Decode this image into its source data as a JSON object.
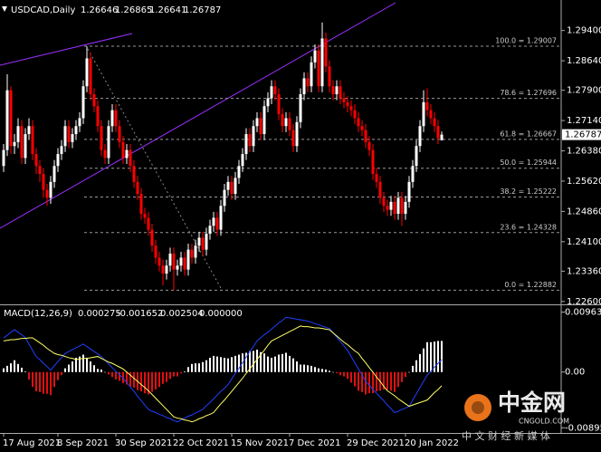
{
  "chart_data": [
    {
      "type": "candlestick",
      "title": "USDCAD,Daily",
      "header_values": [
        1.26646,
        1.26865,
        1.26641,
        1.26787
      ],
      "categories": [
        "17 Aug 2021",
        null,
        null,
        null,
        null,
        null,
        null,
        null,
        null,
        null,
        null,
        null,
        null,
        null,
        null,
        "8 Sep 2021",
        null,
        null,
        null,
        null,
        null,
        null,
        null,
        null,
        null,
        null,
        null,
        null,
        null,
        null,
        null,
        "30 Sep 2021",
        null,
        null,
        null,
        null,
        null,
        null,
        null,
        null,
        null,
        null,
        null,
        null,
        null,
        null,
        null,
        "22 Oct 2021",
        null,
        null,
        null,
        null,
        null,
        null,
        null,
        null,
        null,
        null,
        null,
        null,
        null,
        null,
        null,
        "15 Nov 2021",
        null,
        null,
        null,
        null,
        null,
        null,
        null,
        null,
        null,
        null,
        null,
        null,
        null,
        null,
        null,
        "7 Dec 2021",
        null,
        null,
        null,
        null,
        null,
        null,
        null,
        null,
        null,
        null,
        null,
        null,
        null,
        null,
        null,
        "29 Dec 2021",
        null,
        null,
        null,
        null,
        null,
        null,
        null,
        null,
        null,
        null,
        null,
        null,
        null,
        null,
        null,
        "20 Jan 2022",
        null,
        null,
        null,
        null,
        null,
        null,
        null,
        null,
        null,
        null
      ],
      "open": [
        1.26,
        1.264,
        1.279,
        1.265,
        1.266,
        1.27,
        1.262,
        1.268,
        1.27,
        1.263,
        1.26,
        1.258,
        1.254,
        1.252,
        1.256,
        1.26,
        1.263,
        1.265,
        1.27,
        1.266,
        1.268,
        1.27,
        1.272,
        1.28,
        1.287,
        1.278,
        1.275,
        1.27,
        1.264,
        1.262,
        1.27,
        1.274,
        1.27,
        1.266,
        1.262,
        1.264,
        1.26,
        1.256,
        1.253,
        1.248,
        1.247,
        1.244,
        1.24,
        1.237,
        1.235,
        1.233,
        1.235,
        1.238,
        1.234,
        1.235,
        1.237,
        1.234,
        1.239,
        1.237,
        1.24,
        1.242,
        1.239,
        1.243,
        1.245,
        1.247,
        1.244,
        1.25,
        1.254,
        1.256,
        1.253,
        1.257,
        1.26,
        1.263,
        1.268,
        1.265,
        1.27,
        1.272,
        1.268,
        1.275,
        1.277,
        1.28,
        1.278,
        1.273,
        1.27,
        1.272,
        1.269,
        1.265,
        1.271,
        1.278,
        1.282,
        1.28,
        1.286,
        1.289,
        1.28,
        1.292,
        1.285,
        1.28,
        1.278,
        1.28,
        1.277,
        1.276,
        1.275,
        1.274,
        1.272,
        1.27,
        1.269,
        1.266,
        1.264,
        1.258,
        1.256,
        1.252,
        1.25,
        1.249,
        1.251,
        1.248,
        1.252,
        1.248,
        1.251,
        1.256,
        1.26,
        1.265,
        1.27,
        1.276,
        1.274,
        1.272,
        1.27,
        1.26646
      ],
      "high": [
        1.2655,
        1.283,
        1.28,
        1.268,
        1.272,
        1.2715,
        1.2695,
        1.272,
        1.2715,
        1.2645,
        1.2615,
        1.2595,
        1.2555,
        1.2575,
        1.2615,
        1.2645,
        1.2665,
        1.2715,
        1.2715,
        1.2695,
        1.2715,
        1.2735,
        1.2815,
        1.29,
        1.2885,
        1.2795,
        1.2765,
        1.2715,
        1.2655,
        1.2715,
        1.2755,
        1.2755,
        1.2715,
        1.2675,
        1.2655,
        1.2655,
        1.2615,
        1.2575,
        1.2545,
        1.2495,
        1.2485,
        1.2455,
        1.2415,
        1.2385,
        1.2365,
        1.2365,
        1.2395,
        1.2395,
        1.2365,
        1.2385,
        1.2385,
        1.2405,
        1.2405,
        1.2415,
        1.2435,
        1.2435,
        1.2445,
        1.2465,
        1.2485,
        1.2485,
        1.2515,
        1.2555,
        1.2575,
        1.2575,
        1.2585,
        1.2615,
        1.2645,
        1.2695,
        1.2695,
        1.2715,
        1.2735,
        1.2735,
        1.2765,
        1.2785,
        1.2815,
        1.2815,
        1.2795,
        1.2745,
        1.2735,
        1.2735,
        1.2705,
        1.2725,
        1.2795,
        1.2835,
        1.2835,
        1.2875,
        1.2905,
        1.2905,
        1.296,
        1.2935,
        1.2865,
        1.2815,
        1.2815,
        1.2815,
        1.2785,
        1.2775,
        1.2765,
        1.2755,
        1.2735,
        1.2715,
        1.2705,
        1.2675,
        1.2655,
        1.2595,
        1.2575,
        1.2535,
        1.2515,
        1.2525,
        1.2525,
        1.2535,
        1.2535,
        1.2525,
        1.2575,
        1.2615,
        1.2665,
        1.2715,
        1.279,
        1.2795,
        1.2755,
        1.2735,
        1.2715,
        1.26865
      ],
      "low": [
        1.2585,
        1.2625,
        1.263,
        1.263,
        1.2645,
        1.2605,
        1.2605,
        1.2665,
        1.2615,
        1.258,
        1.256,
        1.252,
        1.25,
        1.2505,
        1.2545,
        1.2585,
        1.2615,
        1.2635,
        1.2645,
        1.2645,
        1.2665,
        1.2685,
        1.2705,
        1.2785,
        1.2765,
        1.2735,
        1.2685,
        1.2625,
        1.2605,
        1.2605,
        1.2685,
        1.2685,
        1.2645,
        1.2605,
        1.2605,
        1.2585,
        1.2545,
        1.2515,
        1.2465,
        1.2455,
        1.2425,
        1.2385,
        1.2355,
        1.2335,
        1.23,
        1.2315,
        1.2335,
        1.2288,
        1.2325,
        1.2335,
        1.2325,
        1.2325,
        1.2355,
        1.2355,
        1.2385,
        1.2375,
        1.2375,
        1.2415,
        1.2435,
        1.2425,
        1.2425,
        1.2485,
        1.2525,
        1.2515,
        1.2515,
        1.2555,
        1.2585,
        1.2615,
        1.2635,
        1.2635,
        1.2685,
        1.2665,
        1.2665,
        1.2735,
        1.2755,
        1.2765,
        1.2715,
        1.2685,
        1.2685,
        1.2675,
        1.2635,
        1.2635,
        1.2695,
        1.2765,
        1.2785,
        1.2785,
        1.2845,
        1.2785,
        1.2785,
        1.2835,
        1.2785,
        1.2765,
        1.2765,
        1.2755,
        1.2745,
        1.2735,
        1.2725,
        1.2705,
        1.2685,
        1.2675,
        1.2645,
        1.2625,
        1.2565,
        1.2545,
        1.2505,
        1.2485,
        1.2475,
        1.2475,
        1.2465,
        1.2465,
        1.245,
        1.2465,
        1.2495,
        1.2545,
        1.2585,
        1.2635,
        1.2685,
        1.2725,
        1.2705,
        1.2685,
        1.2655,
        1.26641
      ],
      "close": [
        1.264,
        1.279,
        1.265,
        1.266,
        1.27,
        1.262,
        1.268,
        1.27,
        1.263,
        1.26,
        1.258,
        1.254,
        1.252,
        1.256,
        1.26,
        1.263,
        1.265,
        1.27,
        1.266,
        1.268,
        1.27,
        1.272,
        1.28,
        1.287,
        1.278,
        1.275,
        1.27,
        1.264,
        1.262,
        1.27,
        1.274,
        1.27,
        1.266,
        1.262,
        1.264,
        1.26,
        1.256,
        1.253,
        1.248,
        1.247,
        1.244,
        1.24,
        1.237,
        1.235,
        1.233,
        1.235,
        1.238,
        1.234,
        1.235,
        1.237,
        1.234,
        1.239,
        1.237,
        1.24,
        1.242,
        1.239,
        1.243,
        1.245,
        1.247,
        1.244,
        1.25,
        1.254,
        1.256,
        1.253,
        1.257,
        1.26,
        1.263,
        1.268,
        1.265,
        1.27,
        1.272,
        1.268,
        1.275,
        1.277,
        1.28,
        1.278,
        1.273,
        1.27,
        1.272,
        1.269,
        1.265,
        1.271,
        1.278,
        1.282,
        1.28,
        1.286,
        1.289,
        1.28,
        1.292,
        1.285,
        1.28,
        1.278,
        1.28,
        1.277,
        1.276,
        1.275,
        1.274,
        1.272,
        1.27,
        1.269,
        1.266,
        1.264,
        1.258,
        1.256,
        1.252,
        1.25,
        1.249,
        1.251,
        1.248,
        1.252,
        1.248,
        1.251,
        1.256,
        1.26,
        1.265,
        1.27,
        1.276,
        1.274,
        1.272,
        1.27,
        1.267,
        1.26787
      ],
      "up_color": "#ffffff",
      "down_color": "#ff0000",
      "ylim": [
        1.2255,
        1.3012
      ],
      "yticks": [
        {
          "value": 1.294,
          "label": "1.29400"
        },
        {
          "value": 1.2864,
          "label": "1.28640"
        },
        {
          "value": 1.279,
          "label": "1.27900"
        },
        {
          "value": 1.2714,
          "label": "1.27140"
        },
        {
          "value": 1.2638,
          "label": "1.26380"
        },
        {
          "value": 1.2562,
          "label": "1.25620"
        },
        {
          "value": 1.2486,
          "label": "1.24860"
        },
        {
          "value": 1.241,
          "label": "1.24100"
        },
        {
          "value": 1.2336,
          "label": "1.23360"
        },
        {
          "value": 1.226,
          "label": "1.22600"
        }
      ],
      "last_price": 1.26787,
      "fibonacci": [
        {
          "value": 1.29007,
          "label": "100.0 = 1.29007"
        },
        {
          "value": 1.27696,
          "label": "78.6 = 1.27696"
        },
        {
          "value": 1.26667,
          "label": "61.8 = 1.26667"
        },
        {
          "value": 1.25944,
          "label": "50.0 = 1.25944"
        },
        {
          "value": 1.25222,
          "label": "38.2 = 1.25222"
        },
        {
          "value": 1.24328,
          "label": "23.6 = 1.24328"
        },
        {
          "value": 1.22882,
          "label": "0.0 = 1.22882"
        }
      ],
      "grid": false
    },
    {
      "type": "macd",
      "title": "MACD(12,26,9)",
      "header_values": [
        "0.000275",
        "-0.001652",
        "0.002504",
        "0.000000"
      ],
      "histogram": {
        "up_color": "#ffffff",
        "down_color": "#e01010",
        "values": [
          0.0006,
          0.001,
          0.0014,
          0.0019,
          0.0013,
          0.0007,
          0.0001,
          -0.0012,
          -0.0024,
          -0.0031,
          -0.0032,
          -0.0035,
          -0.0035,
          -0.0037,
          -0.0024,
          -0.0013,
          -0.0005,
          0.0006,
          0.0012,
          0.0017,
          0.0023,
          0.0025,
          0.0028,
          0.0023,
          0.0017,
          0.0011,
          0.0005,
          0.0004,
          0,
          -0.0004,
          -0.0008,
          -0.0012,
          -0.0014,
          -0.0018,
          -0.002,
          -0.0023,
          -0.0025,
          -0.0029,
          -0.0031,
          -0.0034,
          -0.0036,
          -0.0032,
          -0.0028,
          -0.0024,
          -0.0019,
          -0.0016,
          -0.0011,
          -0.0007,
          -0.0007,
          -0.0002,
          0.0001,
          0.0008,
          0.0013,
          0.0014,
          0.0014,
          0.0016,
          0.0019,
          0.0023,
          0.0026,
          0.0025,
          0.0024,
          0.0023,
          0.0022,
          0.0024,
          0.0026,
          0.0028,
          0.003,
          0.0031,
          0.0034,
          0.0034,
          0.0036,
          0.0032,
          0.003,
          0.0025,
          0.0023,
          0.0025,
          0.0028,
          0.0029,
          0.0031,
          0.0026,
          0.0022,
          0.0017,
          0.0012,
          0.0012,
          0.0011,
          0.001,
          0.0008,
          0.0006,
          0.0005,
          0.0004,
          0.0002,
          0,
          -0.0002,
          -0.0005,
          -0.0007,
          -0.0011,
          -0.0017,
          -0.0023,
          -0.003,
          -0.0032,
          -0.0036,
          -0.0034,
          -0.0034,
          -0.0031,
          -0.003,
          -0.0028,
          -0.0028,
          -0.003,
          -0.0032,
          -0.0024,
          -0.0016,
          -0.0008,
          0,
          0.001,
          0.0019,
          0.0029,
          0.0038,
          0.0048,
          0.0048,
          0.0049,
          0.005,
          0.005
        ]
      },
      "lines": [
        {
          "color": "#2040ff",
          "values": [
            0.0055,
            0.0059,
            0.0064,
            0.0068,
            0.0064,
            0.006,
            0.0055,
            0.0045,
            0.0035,
            0.0025,
            0.002,
            0.0014,
            0.0009,
            0.0003,
            0.001,
            0.0017,
            0.0023,
            0.003,
            0.0033,
            0.0036,
            0.0039,
            0.0042,
            0.0045,
            0.0041,
            0.0037,
            0.0033,
            0.0029,
            0.0025,
            0.0019,
            0.0013,
            0.0007,
            0.0001,
            -0.0004,
            -0.001,
            -0.0017,
            -0.0024,
            -0.0031,
            -0.0039,
            -0.0046,
            -0.0053,
            -0.006,
            -0.0063,
            -0.0065,
            -0.0068,
            -0.007,
            -0.0073,
            -0.0075,
            -0.0078,
            -0.008,
            -0.0077,
            -0.0074,
            -0.0071,
            -0.0069,
            -0.0066,
            -0.0063,
            -0.006,
            -0.0054,
            -0.0049,
            -0.0043,
            -0.0037,
            -0.0031,
            -0.0026,
            -0.002,
            -0.0011,
            -0.0002,
            0.0006,
            0.0015,
            0.0024,
            0.0033,
            0.0041,
            0.005,
            0.0055,
            0.006,
            0.0064,
            0.0069,
            0.0074,
            0.0079,
            0.0083,
            0.0088,
            0.0087,
            0.0086,
            0.0085,
            0.0084,
            0.0083,
            0.0082,
            0.008,
            0.0078,
            0.0076,
            0.0074,
            0.0072,
            0.007,
            0.0063,
            0.0056,
            0.0049,
            0.0042,
            0.0035,
            0.0025,
            0.0015,
            0.0005,
            -0.0005,
            -0.0015,
            -0.0021,
            -0.0028,
            -0.0034,
            -0.004,
            -0.0046,
            -0.0053,
            -0.0059,
            -0.0065,
            -0.0063,
            -0.006,
            -0.0058,
            -0.0055,
            -0.0045,
            -0.0035,
            -0.0025,
            -0.0015,
            -0.0005,
            0.0001,
            0.0008,
            0.0014,
            0.002
          ]
        },
        {
          "color": "#ffff66",
          "values": [
            0.005,
            0.0051,
            0.0052,
            0.0052,
            0.0053,
            0.0054,
            0.0054,
            0.0055,
            0.0055,
            0.0051,
            0.0047,
            0.0043,
            0.0038,
            0.0034,
            0.003,
            0.0028,
            0.0027,
            0.0025,
            0.0023,
            0.0022,
            0.002,
            0.0021,
            0.0022,
            0.0022,
            0.0023,
            0.0024,
            0.0025,
            0.0022,
            0.0019,
            0.0016,
            0.0014,
            0.0011,
            0.0008,
            0.0005,
            0,
            -0.0005,
            -0.001,
            -0.0015,
            -0.002,
            -0.0025,
            -0.003,
            -0.0036,
            -0.0042,
            -0.0048,
            -0.0054,
            -0.006,
            -0.0066,
            -0.0072,
            -0.0074,
            -0.0075,
            -0.0077,
            -0.0078,
            -0.008,
            -0.0078,
            -0.0075,
            -0.0073,
            -0.007,
            -0.0068,
            -0.0065,
            -0.0058,
            -0.0051,
            -0.0045,
            -0.0038,
            -0.0031,
            -0.0024,
            -0.0017,
            -0.001,
            -0.0002,
            0.0005,
            0.0013,
            0.002,
            0.0028,
            0.0035,
            0.0043,
            0.005,
            0.0053,
            0.0056,
            0.0059,
            0.0062,
            0.0065,
            0.0068,
            0.0071,
            0.0074,
            0.0073,
            0.0073,
            0.0072,
            0.0071,
            0.0071,
            0.007,
            0.0069,
            0.0068,
            0.0063,
            0.0058,
            0.0053,
            0.0048,
            0.0044,
            0.0039,
            0.0034,
            0.003,
            0.0022,
            0.0015,
            0.0007,
            0,
            -0.0008,
            -0.0015,
            -0.0023,
            -0.003,
            -0.0034,
            -0.0038,
            -0.0043,
            -0.0047,
            -0.0051,
            -0.0055,
            -0.0053,
            -0.0051,
            -0.0049,
            -0.0047,
            -0.0045,
            -0.0039,
            -0.0033,
            -0.0028,
            -0.0022
          ]
        }
      ],
      "ylim": [
        -0.0095,
        0.0103
      ],
      "yticks": [
        0.009633,
        {
          "value": 0,
          "label": "0.00"
        },
        -0.008955
      ]
    }
  ],
  "watermark": {
    "brand": "中金网",
    "site": "CNGOLD.COM",
    "slogan": "中 文 财 经 新 媒 体"
  }
}
